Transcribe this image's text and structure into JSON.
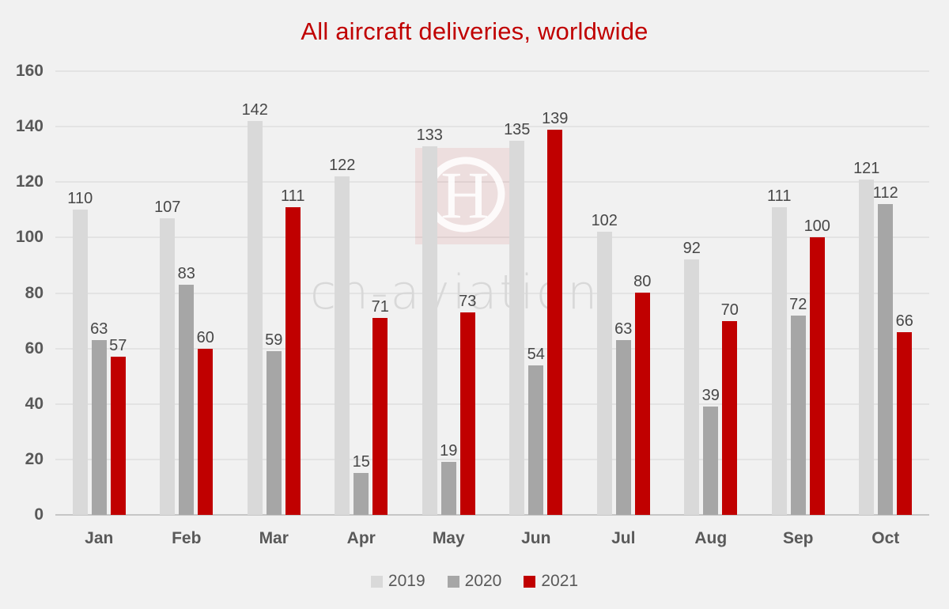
{
  "chart": {
    "title": "All aircraft deliveries, worldwide"
  },
  "watermark": {
    "text": "ch-aviation",
    "logo_letter": "H"
  },
  "colors": {
    "title_red": "#c00000",
    "background": "#f1f1f1",
    "gridline": "#e3e3e3",
    "axis_line": "#c6c6c6",
    "axis_text": "#595959",
    "data_label_text": "#474747",
    "series_2019": "#d9d9d9",
    "series_2020": "#a6a6a6",
    "series_2021": "#c00000"
  },
  "chart_data": {
    "type": "bar",
    "title": "All aircraft deliveries, worldwide",
    "xlabel": "",
    "ylabel": "",
    "categories": [
      "Jan",
      "Feb",
      "Mar",
      "Apr",
      "May",
      "Jun",
      "Jul",
      "Aug",
      "Sep",
      "Oct"
    ],
    "series": [
      {
        "name": "2019",
        "color": "#d9d9d9",
        "values": [
          110,
          107,
          142,
          122,
          133,
          135,
          102,
          92,
          111,
          121
        ]
      },
      {
        "name": "2020",
        "color": "#a6a6a6",
        "values": [
          63,
          83,
          59,
          15,
          19,
          54,
          63,
          39,
          72,
          112
        ]
      },
      {
        "name": "2021",
        "color": "#c00000",
        "values": [
          57,
          60,
          111,
          71,
          73,
          139,
          80,
          70,
          100,
          66
        ]
      }
    ],
    "ylim": [
      0,
      160
    ],
    "ytick_step": 20,
    "grid": "horizontal",
    "legend_position": "bottom",
    "data_labels": "above-bars"
  }
}
